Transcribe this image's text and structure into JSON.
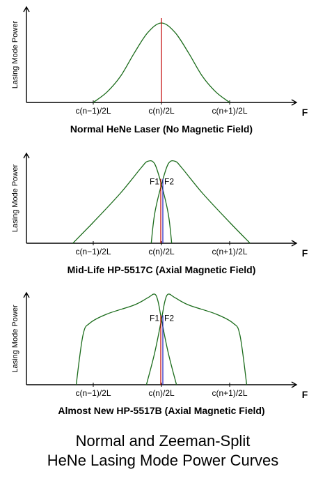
{
  "colors": {
    "axis": "#000000",
    "curve": "#1a6b1a",
    "center_line": "#c00000",
    "split_line_blue": "#2020c0",
    "background": "#ffffff"
  },
  "y_axis_label": "Lasing Mode Power",
  "x_axis_symbol": "F",
  "tick_labels": [
    "c(n−1)/2L",
    "c(n)/2L",
    "c(n+1)/2L"
  ],
  "panels": [
    {
      "id": "normal",
      "title": "Normal HeNe Laser (No Magnetic Field)",
      "curves": [
        {
          "name": "single-mode",
          "points": [
            [
              -1.0,
              0
            ],
            [
              -0.8,
              0.13
            ],
            [
              -0.6,
              0.33
            ],
            [
              -0.4,
              0.62
            ],
            [
              -0.2,
              0.88
            ],
            [
              0,
              1.0
            ],
            [
              0.2,
              0.88
            ],
            [
              0.4,
              0.62
            ],
            [
              0.6,
              0.33
            ],
            [
              0.8,
              0.13
            ],
            [
              1.0,
              0
            ]
          ]
        }
      ],
      "labels": []
    },
    {
      "id": "mid-life",
      "title": "Mid-Life HP-5517C (Axial Magnetic Field)",
      "curves": [
        {
          "name": "F1-curve",
          "points": [
            [
              -1.3,
              0
            ],
            [
              -1.0,
              0.25
            ],
            [
              -0.6,
              0.6
            ],
            [
              -0.3,
              0.9
            ],
            [
              -0.2,
              0.98
            ],
            [
              -0.1,
              0.95
            ],
            [
              0.0,
              0.7
            ],
            [
              0.1,
              0.35
            ],
            [
              0.15,
              0
            ]
          ]
        },
        {
          "name": "F2-curve",
          "points": [
            [
              1.3,
              0
            ],
            [
              1.0,
              0.25
            ],
            [
              0.6,
              0.6
            ],
            [
              0.3,
              0.9
            ],
            [
              0.2,
              0.98
            ],
            [
              0.1,
              0.95
            ],
            [
              0.0,
              0.7
            ],
            [
              -0.1,
              0.35
            ],
            [
              -0.15,
              0
            ]
          ]
        }
      ],
      "labels": [
        "F1",
        "F2"
      ]
    },
    {
      "id": "almost-new",
      "title": "Almost New HP-5517B (Axial Magnetic Field)",
      "curves": [
        {
          "name": "F1-curve",
          "points": [
            [
              -1.25,
              0
            ],
            [
              -1.15,
              0.55
            ],
            [
              -1.05,
              0.68
            ],
            [
              -0.8,
              0.78
            ],
            [
              -0.4,
              0.88
            ],
            [
              -0.2,
              0.96
            ],
            [
              -0.1,
              1.0
            ],
            [
              -0.05,
              0.92
            ],
            [
              0.0,
              0.72
            ],
            [
              0.1,
              0.35
            ],
            [
              0.22,
              0
            ]
          ]
        },
        {
          "name": "F2-curve",
          "points": [
            [
              1.25,
              0
            ],
            [
              1.15,
              0.55
            ],
            [
              1.05,
              0.68
            ],
            [
              0.8,
              0.78
            ],
            [
              0.4,
              0.88
            ],
            [
              0.2,
              0.96
            ],
            [
              0.1,
              1.0
            ],
            [
              0.05,
              0.92
            ],
            [
              0.0,
              0.72
            ],
            [
              -0.1,
              0.35
            ],
            [
              -0.22,
              0
            ]
          ]
        }
      ],
      "labels": [
        "F1",
        "F2"
      ]
    }
  ],
  "footer": {
    "line1": "Normal and Zeeman-Split",
    "line2": "HeNe Lasing Mode Power Curves"
  }
}
